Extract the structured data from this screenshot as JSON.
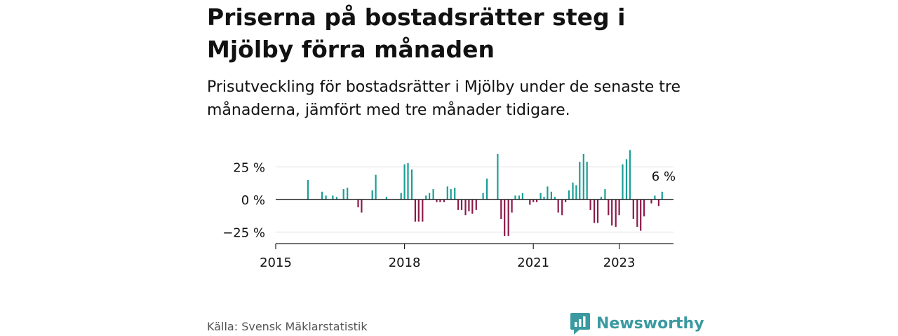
{
  "title": "Priserna på bostadsrätter steg i Mjölby förra månaden",
  "subtitle": "Prisutveckling för bostadsrätter i Mjölby under de senaste tre månaderna, jämfört med tre månader tidigare.",
  "source": "Källa: Svensk Mäklarstatistik",
  "brand": {
    "name": "Newsworthy",
    "icon": "newsworthy-logo-icon",
    "color": "#3a9aa0"
  },
  "colors": {
    "positive": "#1a9e96",
    "negative": "#8b1a4a",
    "grid": "#dddddd",
    "axis": "#222222"
  },
  "chart_data": {
    "type": "bar",
    "x_axis": {
      "ticks": [
        "2015",
        "2018",
        "2021",
        "2023"
      ],
      "tick_years": [
        2015,
        2018,
        2021,
        2023
      ]
    },
    "y_axis": {
      "ticks": [
        "25 %",
        "0 %",
        "−25 %"
      ],
      "tick_values": [
        25,
        0,
        -25
      ],
      "ylim": [
        -35,
        40
      ]
    },
    "grid": true,
    "annotation": {
      "text": "6 %",
      "value": 6
    },
    "series": [
      {
        "values": [
          {
            "year": 2015.75,
            "value": 15
          },
          {
            "year": 2016.08,
            "value": 6
          },
          {
            "year": 2016.17,
            "value": 3
          },
          {
            "year": 2016.33,
            "value": 3
          },
          {
            "year": 2016.42,
            "value": 2
          },
          {
            "year": 2016.58,
            "value": 8
          },
          {
            "year": 2016.67,
            "value": 9
          },
          {
            "year": 2016.92,
            "value": -6
          },
          {
            "year": 2017.0,
            "value": -10
          },
          {
            "year": 2017.25,
            "value": 7
          },
          {
            "year": 2017.33,
            "value": 19
          },
          {
            "year": 2017.58,
            "value": 2
          },
          {
            "year": 2017.92,
            "value": 5
          },
          {
            "year": 2018.0,
            "value": 27
          },
          {
            "year": 2018.08,
            "value": 28
          },
          {
            "year": 2018.17,
            "value": 23
          },
          {
            "year": 2018.25,
            "value": -17
          },
          {
            "year": 2018.33,
            "value": -17
          },
          {
            "year": 2018.42,
            "value": -17
          },
          {
            "year": 2018.5,
            "value": 3
          },
          {
            "year": 2018.58,
            "value": 5
          },
          {
            "year": 2018.67,
            "value": 8
          },
          {
            "year": 2018.75,
            "value": -2
          },
          {
            "year": 2018.83,
            "value": -2
          },
          {
            "year": 2018.92,
            "value": -2
          },
          {
            "year": 2019.0,
            "value": 10
          },
          {
            "year": 2019.08,
            "value": 8
          },
          {
            "year": 2019.17,
            "value": 9
          },
          {
            "year": 2019.25,
            "value": -8
          },
          {
            "year": 2019.33,
            "value": -8
          },
          {
            "year": 2019.42,
            "value": -12
          },
          {
            "year": 2019.5,
            "value": -9
          },
          {
            "year": 2019.58,
            "value": -11
          },
          {
            "year": 2019.67,
            "value": -8
          },
          {
            "year": 2019.83,
            "value": 5
          },
          {
            "year": 2019.92,
            "value": 16
          },
          {
            "year": 2020.17,
            "value": 35
          },
          {
            "year": 2020.25,
            "value": -15
          },
          {
            "year": 2020.33,
            "value": -28
          },
          {
            "year": 2020.42,
            "value": -28
          },
          {
            "year": 2020.5,
            "value": -10
          },
          {
            "year": 2020.58,
            "value": 3
          },
          {
            "year": 2020.67,
            "value": 3
          },
          {
            "year": 2020.75,
            "value": 5
          },
          {
            "year": 2020.92,
            "value": -4
          },
          {
            "year": 2021.0,
            "value": -2
          },
          {
            "year": 2021.08,
            "value": -2
          },
          {
            "year": 2021.17,
            "value": 5
          },
          {
            "year": 2021.25,
            "value": 2
          },
          {
            "year": 2021.33,
            "value": 10
          },
          {
            "year": 2021.42,
            "value": 6
          },
          {
            "year": 2021.5,
            "value": 2
          },
          {
            "year": 2021.58,
            "value": -10
          },
          {
            "year": 2021.67,
            "value": -12
          },
          {
            "year": 2021.75,
            "value": -2
          },
          {
            "year": 2021.83,
            "value": 7
          },
          {
            "year": 2021.92,
            "value": 13
          },
          {
            "year": 2022.0,
            "value": 11
          },
          {
            "year": 2022.08,
            "value": 29
          },
          {
            "year": 2022.17,
            "value": 35
          },
          {
            "year": 2022.25,
            "value": 29
          },
          {
            "year": 2022.33,
            "value": -8
          },
          {
            "year": 2022.42,
            "value": -18
          },
          {
            "year": 2022.5,
            "value": -18
          },
          {
            "year": 2022.58,
            "value": 2
          },
          {
            "year": 2022.67,
            "value": 8
          },
          {
            "year": 2022.75,
            "value": -12
          },
          {
            "year": 2022.83,
            "value": -20
          },
          {
            "year": 2022.92,
            "value": -21
          },
          {
            "year": 2023.0,
            "value": -12
          },
          {
            "year": 2023.08,
            "value": 27
          },
          {
            "year": 2023.17,
            "value": 31
          },
          {
            "year": 2023.25,
            "value": 38
          },
          {
            "year": 2023.33,
            "value": -15
          },
          {
            "year": 2023.42,
            "value": -21
          },
          {
            "year": 2023.5,
            "value": -24
          },
          {
            "year": 2023.58,
            "value": -13
          },
          {
            "year": 2023.75,
            "value": -3
          },
          {
            "year": 2023.83,
            "value": 3
          },
          {
            "year": 2023.92,
            "value": -5
          },
          {
            "year": 2024.0,
            "value": 6
          }
        ]
      }
    ]
  }
}
